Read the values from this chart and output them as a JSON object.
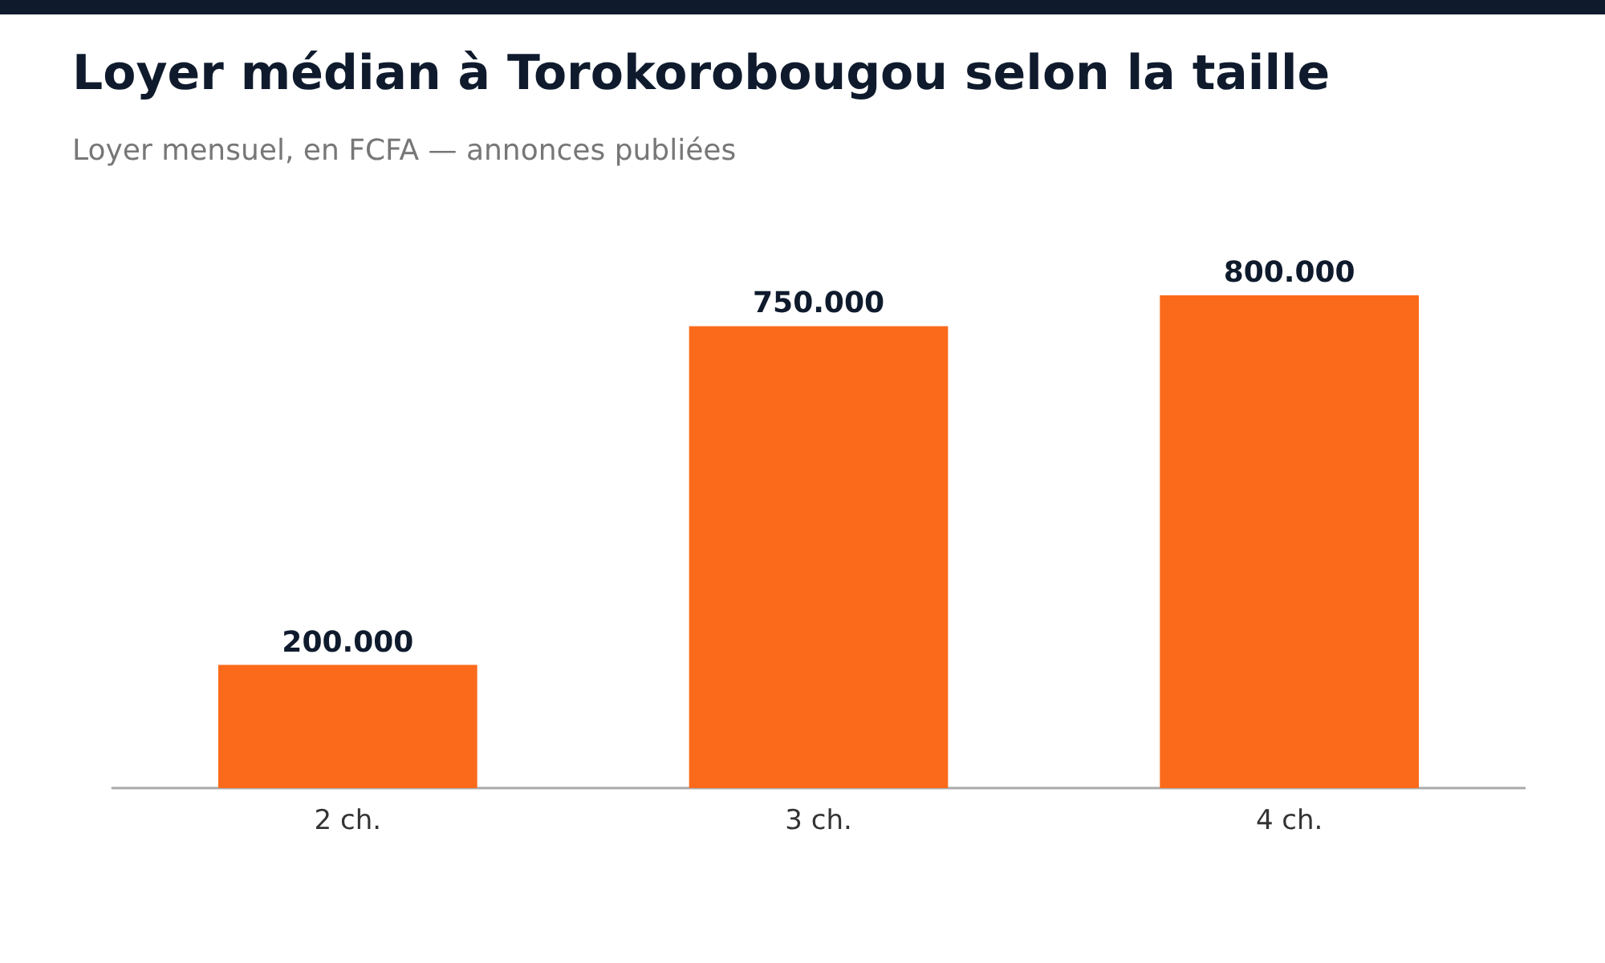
{
  "chart_data": {
    "type": "bar",
    "title": "Loyer médian à Torokorobougou selon la taille",
    "subtitle": "Loyer mensuel, en FCFA — annonces publiées",
    "categories": [
      "2 ch.",
      "3 ch.",
      "4 ch."
    ],
    "values": [
      200000,
      750000,
      800000
    ],
    "value_labels": [
      "200.000",
      "750.000",
      "800.000"
    ],
    "color": "#fb6a1a"
  }
}
